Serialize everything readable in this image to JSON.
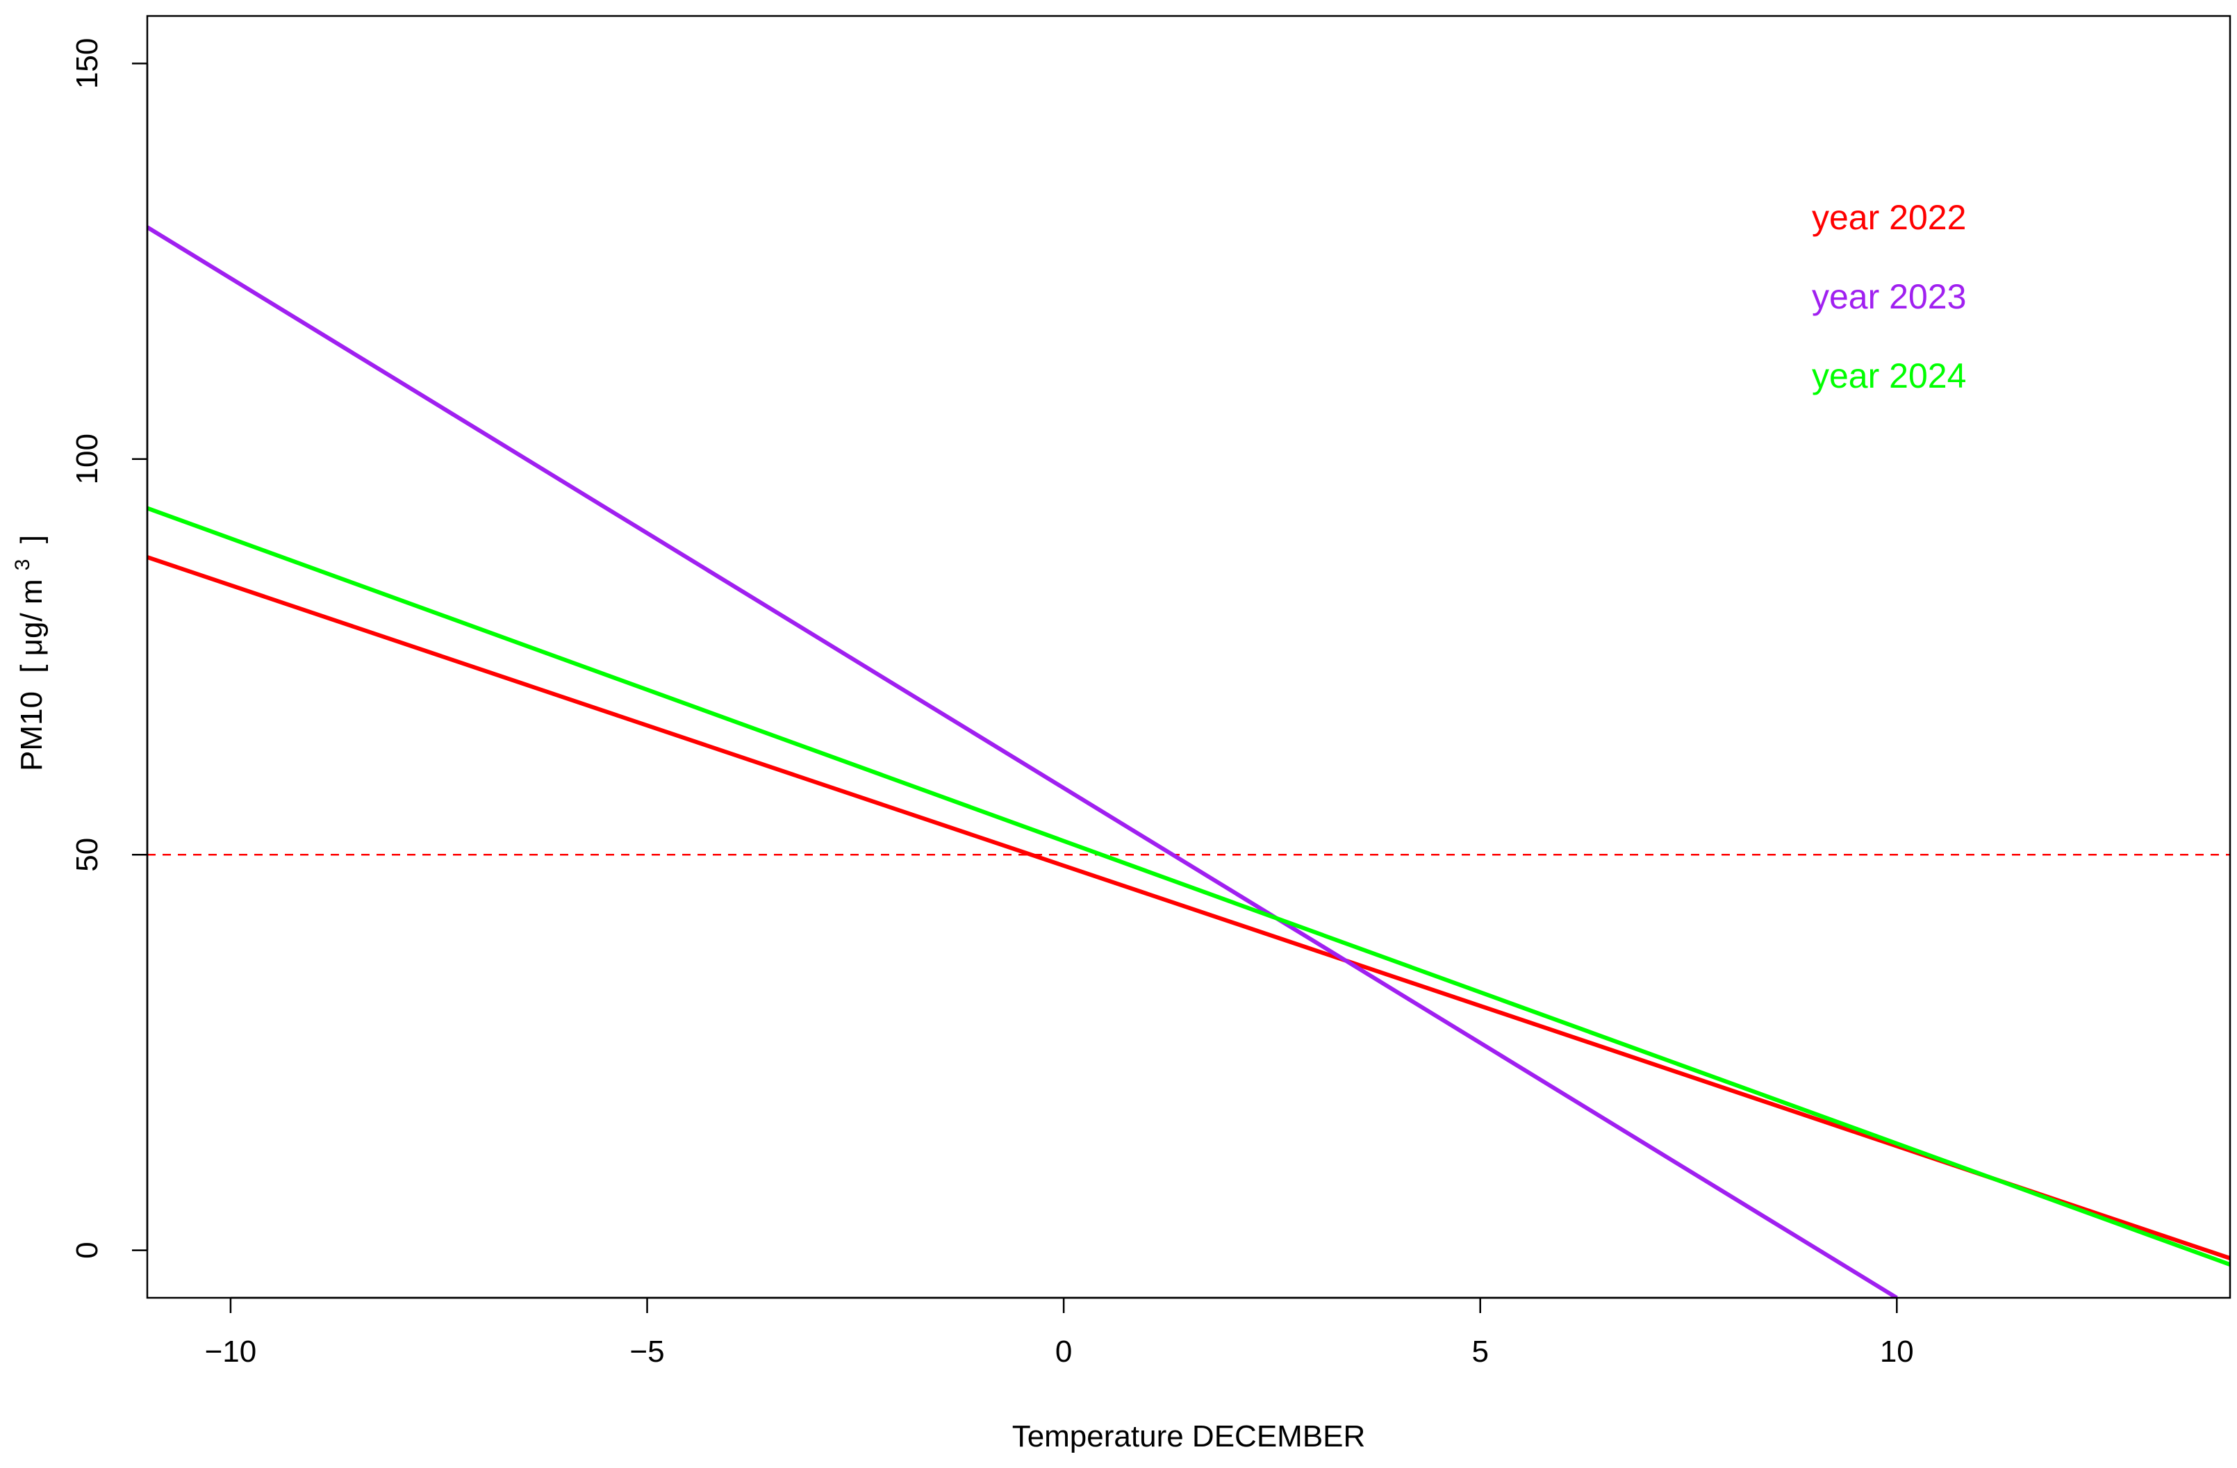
{
  "chart_data": {
    "type": "line",
    "title": "",
    "xlabel": "Temperature DECEMBER",
    "ylabel": {
      "text": "PM10",
      "unit_prefix": "[ μg/ m",
      "unit_sup": "3",
      "unit_suffix": "]"
    },
    "xlim": [
      -11,
      14
    ],
    "ylim": [
      -6,
      156
    ],
    "x_ticks": [
      -10,
      -5,
      0,
      5,
      10
    ],
    "x_tick_labels": [
      "−10",
      "−5",
      "0",
      "5",
      "10"
    ],
    "y_ticks": [
      0,
      50,
      100,
      150
    ],
    "y_tick_labels": [
      "0",
      "50",
      "100",
      "150"
    ],
    "grid": false,
    "legend_position": "top-right",
    "series": [
      {
        "name": "year 2022",
        "color": "#ff0000",
        "x": [
          -11,
          14
        ],
        "y": [
          87.6,
          -1.0
        ]
      },
      {
        "name": "year 2023",
        "color": "#a020f0",
        "x": [
          -11,
          10
        ],
        "y": [
          129.3,
          -6.0
        ]
      },
      {
        "name": "year 2024",
        "color": "#00ff00",
        "x": [
          -11,
          14
        ],
        "y": [
          93.8,
          -1.8
        ]
      }
    ],
    "reference_lines": [
      {
        "y": 50,
        "color": "#ff0000",
        "style": "dashed"
      }
    ]
  }
}
